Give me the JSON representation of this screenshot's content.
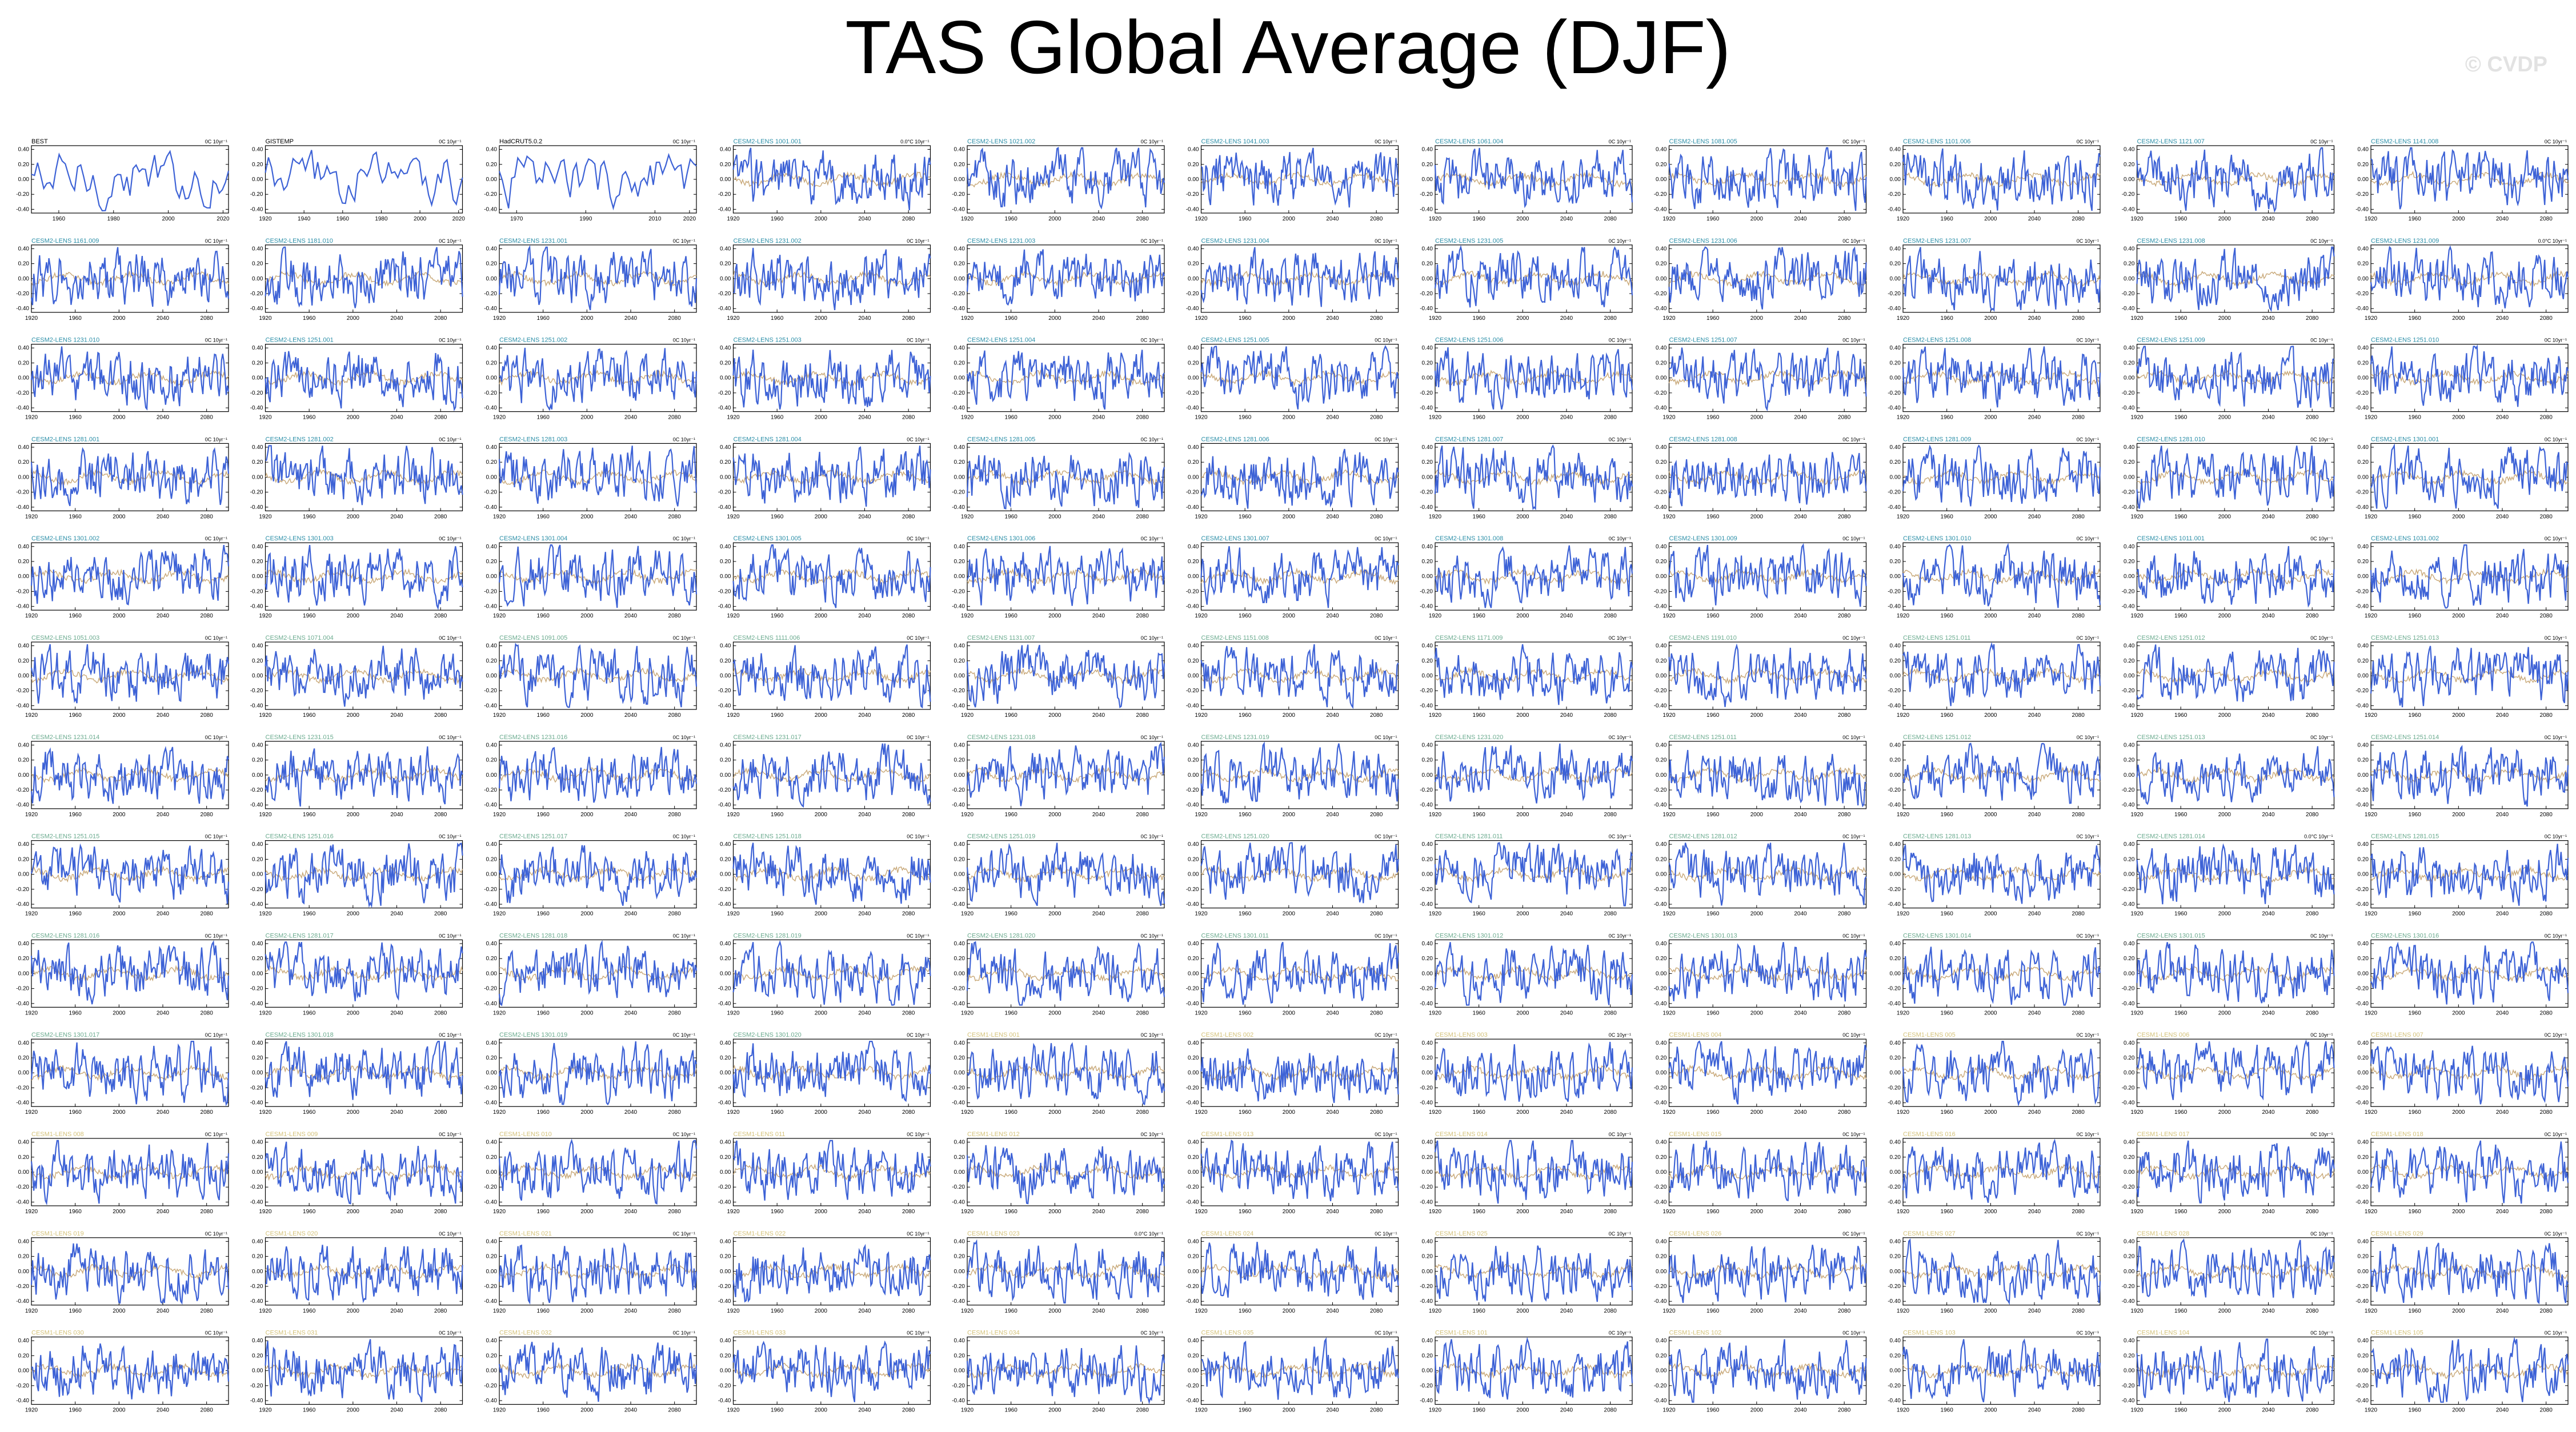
{
  "title": "TAS Global Average (DJF)",
  "watermark": "© CVDP",
  "colors": {
    "series": "#3d62d6",
    "ensemble_mean": "#c8a878",
    "title_observed": "#000000",
    "title_cesm2": "#2c8fa8",
    "title_cesm2_late": "#6bab8f",
    "title_cesm1": "#d4c27a"
  },
  "chart_data": {
    "type": "line",
    "layout": "small-multiples grid, 11 columns x 13 rows",
    "y_ticks": [
      "0.40",
      "0.20",
      "0.00",
      "-0.20",
      "-0.40"
    ],
    "ylim": [
      -0.45,
      0.45
    ],
    "panels": [
      {
        "title": "BEST",
        "unit": "0C 10yr⁻¹",
        "xlim": [
          1950,
          2022
        ],
        "x_ticks": [
          "1960",
          "1980",
          "2000",
          "2020"
        ],
        "group": "observed"
      },
      {
        "title": "GISTEMP",
        "unit": "0C 10yr⁻¹",
        "xlim": [
          1920,
          2022
        ],
        "x_ticks": [
          "1920",
          "1940",
          "1960",
          "1980",
          "2000",
          "2020"
        ],
        "group": "observed"
      },
      {
        "title": "HadCRUT5.0.2",
        "unit": "0C 10yr⁻¹",
        "xlim": [
          1965,
          2022
        ],
        "x_ticks": [
          "1970",
          "1990",
          "2010",
          "2020"
        ],
        "group": "observed"
      },
      {
        "title": "CESM2-LENS 1001.001",
        "unit": "0.0°C 10yr⁻¹",
        "group": "cesm2"
      },
      {
        "title": "CESM2-LENS 1021.002",
        "unit": "0C 10yr⁻¹",
        "group": "cesm2"
      },
      {
        "title": "CESM2-LENS 1041.003",
        "unit": "0C 10yr⁻¹",
        "group": "cesm2"
      },
      {
        "title": "CESM2-LENS 1061.004",
        "unit": "0C 10yr⁻¹",
        "group": "cesm2"
      },
      {
        "title": "CESM2-LENS 1081.005",
        "unit": "0C 10yr⁻¹",
        "group": "cesm2"
      },
      {
        "title": "CESM2-LENS 1101.006",
        "unit": "0C 10yr⁻¹",
        "group": "cesm2"
      },
      {
        "title": "CESM2-LENS 1121.007",
        "unit": "0C 10yr⁻¹",
        "group": "cesm2"
      },
      {
        "title": "CESM2-LENS 1141.008",
        "unit": "0C 10yr⁻¹",
        "group": "cesm2"
      },
      {
        "title": "CESM2-LENS 1161.009",
        "unit": "0C 10yr⁻¹",
        "group": "cesm2"
      },
      {
        "title": "CESM2-LENS 1181.010",
        "unit": "0C 10yr⁻¹",
        "group": "cesm2"
      },
      {
        "title": "CESM2-LENS 1231.001",
        "unit": "0C 10yr⁻¹",
        "group": "cesm2"
      },
      {
        "title": "CESM2-LENS 1231.002",
        "unit": "0C 10yr⁻¹",
        "group": "cesm2"
      },
      {
        "title": "CESM2-LENS 1231.003",
        "unit": "0C 10yr⁻¹",
        "group": "cesm2"
      },
      {
        "title": "CESM2-LENS 1231.004",
        "unit": "0C 10yr⁻¹",
        "group": "cesm2"
      },
      {
        "title": "CESM2-LENS 1231.005",
        "unit": "0C 10yr⁻¹",
        "group": "cesm2"
      },
      {
        "title": "CESM2-LENS 1231.006",
        "unit": "0C 10yr⁻¹",
        "group": "cesm2"
      },
      {
        "title": "CESM2-LENS 1231.007",
        "unit": "0C 10yr⁻¹",
        "group": "cesm2"
      },
      {
        "title": "CESM2-LENS 1231.008",
        "unit": "0C 10yr⁻¹",
        "group": "cesm2"
      },
      {
        "title": "CESM2-LENS 1231.009",
        "unit": "0.0°C 10yr⁻¹",
        "group": "cesm2"
      },
      {
        "title": "CESM2-LENS 1231.010",
        "unit": "0C 10yr⁻¹",
        "group": "cesm2"
      },
      {
        "title": "CESM2-LENS 1251.001",
        "unit": "0C 10yr⁻¹",
        "group": "cesm2"
      },
      {
        "title": "CESM2-LENS 1251.002",
        "unit": "0C 10yr⁻¹",
        "group": "cesm2"
      },
      {
        "title": "CESM2-LENS 1251.003",
        "unit": "0C 10yr⁻¹",
        "group": "cesm2"
      },
      {
        "title": "CESM2-LENS 1251.004",
        "unit": "0C 10yr⁻¹",
        "group": "cesm2"
      },
      {
        "title": "CESM2-LENS 1251.005",
        "unit": "0C 10yr⁻¹",
        "group": "cesm2"
      },
      {
        "title": "CESM2-LENS 1251.006",
        "unit": "0C 10yr⁻¹",
        "group": "cesm2"
      },
      {
        "title": "CESM2-LENS 1251.007",
        "unit": "0C 10yr⁻¹",
        "group": "cesm2"
      },
      {
        "title": "CESM2-LENS 1251.008",
        "unit": "0C 10yr⁻¹",
        "group": "cesm2"
      },
      {
        "title": "CESM2-LENS 1251.009",
        "unit": "0C 10yr⁻¹",
        "group": "cesm2"
      },
      {
        "title": "CESM2-LENS 1251.010",
        "unit": "0C 10yr⁻¹",
        "group": "cesm2"
      },
      {
        "title": "CESM2-LENS 1281.001",
        "unit": "0C 10yr⁻¹",
        "group": "cesm2"
      },
      {
        "title": "CESM2-LENS 1281.002",
        "unit": "0C 10yr⁻¹",
        "group": "cesm2"
      },
      {
        "title": "CESM2-LENS 1281.003",
        "unit": "0C 10yr⁻¹",
        "group": "cesm2"
      },
      {
        "title": "CESM2-LENS 1281.004",
        "unit": "0C 10yr⁻¹",
        "group": "cesm2"
      },
      {
        "title": "CESM2-LENS 1281.005",
        "unit": "0C 10yr⁻¹",
        "group": "cesm2"
      },
      {
        "title": "CESM2-LENS 1281.006",
        "unit": "0C 10yr⁻¹",
        "group": "cesm2"
      },
      {
        "title": "CESM2-LENS 1281.007",
        "unit": "0C 10yr⁻¹",
        "group": "cesm2"
      },
      {
        "title": "CESM2-LENS 1281.008",
        "unit": "0C 10yr⁻¹",
        "group": "cesm2"
      },
      {
        "title": "CESM2-LENS 1281.009",
        "unit": "0C 10yr⁻¹",
        "group": "cesm2"
      },
      {
        "title": "CESM2-LENS 1281.010",
        "unit": "0C 10yr⁻¹",
        "group": "cesm2"
      },
      {
        "title": "CESM2-LENS 1301.001",
        "unit": "0C 10yr⁻¹",
        "group": "cesm2"
      },
      {
        "title": "CESM2-LENS 1301.002",
        "unit": "0C 10yr⁻¹",
        "group": "cesm2"
      },
      {
        "title": "CESM2-LENS 1301.003",
        "unit": "0C 10yr⁻¹",
        "group": "cesm2"
      },
      {
        "title": "CESM2-LENS 1301.004",
        "unit": "0C 10yr⁻¹",
        "group": "cesm2"
      },
      {
        "title": "CESM2-LENS 1301.005",
        "unit": "0C 10yr⁻¹",
        "group": "cesm2"
      },
      {
        "title": "CESM2-LENS 1301.006",
        "unit": "0C 10yr⁻¹",
        "group": "cesm2"
      },
      {
        "title": "CESM2-LENS 1301.007",
        "unit": "0C 10yr⁻¹",
        "group": "cesm2"
      },
      {
        "title": "CESM2-LENS 1301.008",
        "unit": "0C 10yr⁻¹",
        "group": "cesm2"
      },
      {
        "title": "CESM2-LENS 1301.009",
        "unit": "0C 10yr⁻¹",
        "group": "cesm2"
      },
      {
        "title": "CESM2-LENS 1301.010",
        "unit": "0C 10yr⁻¹",
        "group": "cesm2"
      },
      {
        "title": "CESM2-LENS 1011.001",
        "unit": "0C 10yr⁻¹",
        "group": "cesm2"
      },
      {
        "title": "CESM2-LENS 1031.002",
        "unit": "0C 10yr⁻¹",
        "group": "cesm2"
      },
      {
        "title": "CESM2-LENS 1051.003",
        "unit": "0C 10yr⁻¹",
        "group": "cesm2_late"
      },
      {
        "title": "CESM2-LENS 1071.004",
        "unit": "0C 10yr⁻¹",
        "group": "cesm2_late"
      },
      {
        "title": "CESM2-LENS 1091.005",
        "unit": "0C 10yr⁻¹",
        "group": "cesm2_late"
      },
      {
        "title": "CESM2-LENS 1111.006",
        "unit": "0C 10yr⁻¹",
        "group": "cesm2_late"
      },
      {
        "title": "CESM2-LENS 1131.007",
        "unit": "0C 10yr⁻¹",
        "group": "cesm2_late"
      },
      {
        "title": "CESM2-LENS 1151.008",
        "unit": "0C 10yr⁻¹",
        "group": "cesm2_late"
      },
      {
        "title": "CESM2-LENS 1171.009",
        "unit": "0C 10yr⁻¹",
        "group": "cesm2_late"
      },
      {
        "title": "CESM2-LENS 1191.010",
        "unit": "0C 10yr⁻¹",
        "group": "cesm2_late"
      },
      {
        "title": "CESM2-LENS 1251.011",
        "unit": "0C 10yr⁻¹",
        "group": "cesm2_late"
      },
      {
        "title": "CESM2-LENS 1251.012",
        "unit": "0C 10yr⁻¹",
        "group": "cesm2_late"
      },
      {
        "title": "CESM2-LENS 1251.013",
        "unit": "0C 10yr⁻¹",
        "group": "cesm2_late"
      },
      {
        "title": "CESM2-LENS 1231.014",
        "unit": "0C 10yr⁻¹",
        "group": "cesm2_late"
      },
      {
        "title": "CESM2-LENS 1231.015",
        "unit": "0C 10yr⁻¹",
        "group": "cesm2_late"
      },
      {
        "title": "CESM2-LENS 1231.016",
        "unit": "0C 10yr⁻¹",
        "group": "cesm2_late"
      },
      {
        "title": "CESM2-LENS 1231.017",
        "unit": "0C 10yr⁻¹",
        "group": "cesm2_late"
      },
      {
        "title": "CESM2-LENS 1231.018",
        "unit": "0C 10yr⁻¹",
        "group": "cesm2_late"
      },
      {
        "title": "CESM2-LENS 1231.019",
        "unit": "0C 10yr⁻¹",
        "group": "cesm2_late"
      },
      {
        "title": "CESM2-LENS 1231.020",
        "unit": "0C 10yr⁻¹",
        "group": "cesm2_late"
      },
      {
        "title": "CESM2-LENS 1251.011",
        "unit": "0C 10yr⁻¹",
        "group": "cesm2_late"
      },
      {
        "title": "CESM2-LENS 1251.012",
        "unit": "0C 10yr⁻¹",
        "group": "cesm2_late"
      },
      {
        "title": "CESM2-LENS 1251.013",
        "unit": "0C 10yr⁻¹",
        "group": "cesm2_late"
      },
      {
        "title": "CESM2-LENS 1251.014",
        "unit": "0C 10yr⁻¹",
        "group": "cesm2_late"
      },
      {
        "title": "CESM2-LENS 1251.015",
        "unit": "0C 10yr⁻¹",
        "group": "cesm2_late"
      },
      {
        "title": "CESM2-LENS 1251.016",
        "unit": "0C 10yr⁻¹",
        "group": "cesm2_late"
      },
      {
        "title": "CESM2-LENS 1251.017",
        "unit": "0C 10yr⁻¹",
        "group": "cesm2_late"
      },
      {
        "title": "CESM2-LENS 1251.018",
        "unit": "0C 10yr⁻¹",
        "group": "cesm2_late"
      },
      {
        "title": "CESM2-LENS 1251.019",
        "unit": "0C 10yr⁻¹",
        "group": "cesm2_late"
      },
      {
        "title": "CESM2-LENS 1251.020",
        "unit": "0C 10yr⁻¹",
        "group": "cesm2_late"
      },
      {
        "title": "CESM2-LENS 1281.011",
        "unit": "0C 10yr⁻¹",
        "group": "cesm2_late"
      },
      {
        "title": "CESM2-LENS 1281.012",
        "unit": "0C 10yr⁻¹",
        "group": "cesm2_late"
      },
      {
        "title": "CESM2-LENS 1281.013",
        "unit": "0C 10yr⁻¹",
        "group": "cesm2_late"
      },
      {
        "title": "CESM2-LENS 1281.014",
        "unit": "0.0°C 10yr⁻¹",
        "group": "cesm2_late"
      },
      {
        "title": "CESM2-LENS 1281.015",
        "unit": "0C 10yr⁻¹",
        "group": "cesm2_late"
      },
      {
        "title": "CESM2-LENS 1281.016",
        "unit": "0C 10yr⁻¹",
        "group": "cesm2_late"
      },
      {
        "title": "CESM2-LENS 1281.017",
        "unit": "0C 10yr⁻¹",
        "group": "cesm2_late"
      },
      {
        "title": "CESM2-LENS 1281.018",
        "unit": "0C 10yr⁻¹",
        "group": "cesm2_late"
      },
      {
        "title": "CESM2-LENS 1281.019",
        "unit": "0C 10yr⁻¹",
        "group": "cesm2_late"
      },
      {
        "title": "CESM2-LENS 1281.020",
        "unit": "0C 10yr⁻¹",
        "group": "cesm2_late"
      },
      {
        "title": "CESM2-LENS 1301.011",
        "unit": "0C 10yr⁻¹",
        "group": "cesm2_late"
      },
      {
        "title": "CESM2-LENS 1301.012",
        "unit": "0C 10yr⁻¹",
        "group": "cesm2_late"
      },
      {
        "title": "CESM2-LENS 1301.013",
        "unit": "0C 10yr⁻¹",
        "group": "cesm2_late"
      },
      {
        "title": "CESM2-LENS 1301.014",
        "unit": "0C 10yr⁻¹",
        "group": "cesm2_late"
      },
      {
        "title": "CESM2-LENS 1301.015",
        "unit": "0C 10yr⁻¹",
        "group": "cesm2_late"
      },
      {
        "title": "CESM2-LENS 1301.016",
        "unit": "0C 10yr⁻¹",
        "group": "cesm2_late"
      },
      {
        "title": "CESM2-LENS 1301.017",
        "unit": "0C 10yr⁻¹",
        "group": "cesm2_late"
      },
      {
        "title": "CESM2-LENS 1301.018",
        "unit": "0C 10yr⁻¹",
        "group": "cesm2_late"
      },
      {
        "title": "CESM2-LENS 1301.019",
        "unit": "0C 10yr⁻¹",
        "group": "cesm2_late"
      },
      {
        "title": "CESM2-LENS 1301.020",
        "unit": "0C 10yr⁻¹",
        "group": "cesm2_late"
      },
      {
        "title": "CESM1-LENS 001",
        "unit": "0C 10yr⁻¹",
        "group": "cesm1"
      },
      {
        "title": "CESM1-LENS 002",
        "unit": "0C 10yr⁻¹",
        "group": "cesm1"
      },
      {
        "title": "CESM1-LENS 003",
        "unit": "0C 10yr⁻¹",
        "group": "cesm1"
      },
      {
        "title": "CESM1-LENS 004",
        "unit": "0C 10yr⁻¹",
        "group": "cesm1"
      },
      {
        "title": "CESM1-LENS 005",
        "unit": "0C 10yr⁻¹",
        "group": "cesm1"
      },
      {
        "title": "CESM1-LENS 006",
        "unit": "0C 10yr⁻¹",
        "group": "cesm1"
      },
      {
        "title": "CESM1-LENS 007",
        "unit": "0C 10yr⁻¹",
        "group": "cesm1"
      },
      {
        "title": "CESM1-LENS 008",
        "unit": "0C 10yr⁻¹",
        "group": "cesm1"
      },
      {
        "title": "CESM1-LENS 009",
        "unit": "0C 10yr⁻¹",
        "group": "cesm1"
      },
      {
        "title": "CESM1-LENS 010",
        "unit": "0C 10yr⁻¹",
        "group": "cesm1"
      },
      {
        "title": "CESM1-LENS 011",
        "unit": "0C 10yr⁻¹",
        "group": "cesm1"
      },
      {
        "title": "CESM1-LENS 012",
        "unit": "0C 10yr⁻¹",
        "group": "cesm1"
      },
      {
        "title": "CESM1-LENS 013",
        "unit": "0C 10yr⁻¹",
        "group": "cesm1"
      },
      {
        "title": "CESM1-LENS 014",
        "unit": "0C 10yr⁻¹",
        "group": "cesm1"
      },
      {
        "title": "CESM1-LENS 015",
        "unit": "0C 10yr⁻¹",
        "group": "cesm1"
      },
      {
        "title": "CESM1-LENS 016",
        "unit": "0C 10yr⁻¹",
        "group": "cesm1"
      },
      {
        "title": "CESM1-LENS 017",
        "unit": "0C 10yr⁻¹",
        "group": "cesm1"
      },
      {
        "title": "CESM1-LENS 018",
        "unit": "0C 10yr⁻¹",
        "group": "cesm1"
      },
      {
        "title": "CESM1-LENS 019",
        "unit": "0C 10yr⁻¹",
        "group": "cesm1"
      },
      {
        "title": "CESM1-LENS 020",
        "unit": "0C 10yr⁻¹",
        "group": "cesm1"
      },
      {
        "title": "CESM1-LENS 021",
        "unit": "0C 10yr⁻¹",
        "group": "cesm1"
      },
      {
        "title": "CESM1-LENS 022",
        "unit": "0C 10yr⁻¹",
        "group": "cesm1"
      },
      {
        "title": "CESM1-LENS 023",
        "unit": "0.0°C 10yr⁻¹",
        "group": "cesm1"
      },
      {
        "title": "CESM1-LENS 024",
        "unit": "0C 10yr⁻¹",
        "group": "cesm1"
      },
      {
        "title": "CESM1-LENS 025",
        "unit": "0C 10yr⁻¹",
        "group": "cesm1"
      },
      {
        "title": "CESM1-LENS 026",
        "unit": "0C 10yr⁻¹",
        "group": "cesm1"
      },
      {
        "title": "CESM1-LENS 027",
        "unit": "0C 10yr⁻¹",
        "group": "cesm1"
      },
      {
        "title": "CESM1-LENS 028",
        "unit": "0C 10yr⁻¹",
        "group": "cesm1"
      },
      {
        "title": "CESM1-LENS 029",
        "unit": "0C 10yr⁻¹",
        "group": "cesm1"
      },
      {
        "title": "CESM1-LENS 030",
        "unit": "0C 10yr⁻¹",
        "group": "cesm1"
      },
      {
        "title": "CESM1-LENS 031",
        "unit": "0C 10yr⁻¹",
        "group": "cesm1"
      },
      {
        "title": "CESM1-LENS 032",
        "unit": "0C 10yr⁻¹",
        "group": "cesm1"
      },
      {
        "title": "CESM1-LENS 033",
        "unit": "0C 10yr⁻¹",
        "group": "cesm1"
      },
      {
        "title": "CESM1-LENS 034",
        "unit": "0C 10yr⁻¹",
        "group": "cesm1"
      },
      {
        "title": "CESM1-LENS 035",
        "unit": "0C 10yr⁻¹",
        "group": "cesm1"
      },
      {
        "title": "CESM1-LENS 101",
        "unit": "0C 10yr⁻¹",
        "group": "cesm1"
      },
      {
        "title": "CESM1-LENS 102",
        "unit": "0C 10yr⁻¹",
        "group": "cesm1"
      },
      {
        "title": "CESM1-LENS 103",
        "unit": "0C 10yr⁻¹",
        "group": "cesm1"
      },
      {
        "title": "CESM1-LENS 104",
        "unit": "0C 10yr⁻¹",
        "group": "cesm1"
      },
      {
        "title": "CESM1-LENS 105",
        "unit": "0C 10yr⁻¹",
        "group": "cesm1"
      }
    ],
    "default_xlim": [
      1920,
      2100
    ],
    "default_x_ticks": [
      "1920",
      "1960",
      "2000",
      "2040",
      "2080"
    ]
  }
}
